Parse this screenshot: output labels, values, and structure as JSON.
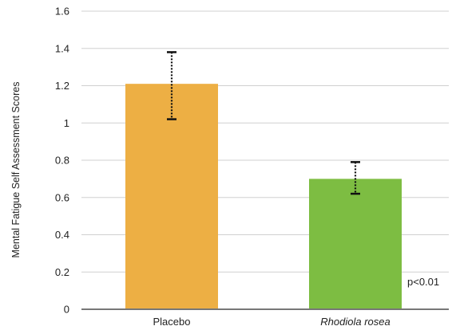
{
  "chart_data": {
    "type": "bar",
    "categories": [
      "Placebo",
      "Rhodiola rosea"
    ],
    "category_styles": [
      "normal",
      "italic"
    ],
    "values": [
      1.21,
      0.7
    ],
    "error_bars": [
      {
        "low": 1.02,
        "high": 1.38
      },
      {
        "low": 0.62,
        "high": 0.79
      }
    ],
    "colors": [
      "#EDAF44",
      "#7DBD42"
    ],
    "xlabel": "",
    "ylabel": "Mental Fatigue Self Assessment Scores",
    "ylim": [
      0,
      1.6
    ],
    "yticks": [
      0,
      0.2,
      0.4,
      0.6,
      0.8,
      1,
      1.2,
      1.4,
      1.6
    ],
    "ytick_labels": [
      "0",
      "0.2",
      "0.4",
      "0.6",
      "0.8",
      "1",
      "1.2",
      "1.4",
      "1.6"
    ],
    "grid": true,
    "annotation": "p<0.01"
  }
}
